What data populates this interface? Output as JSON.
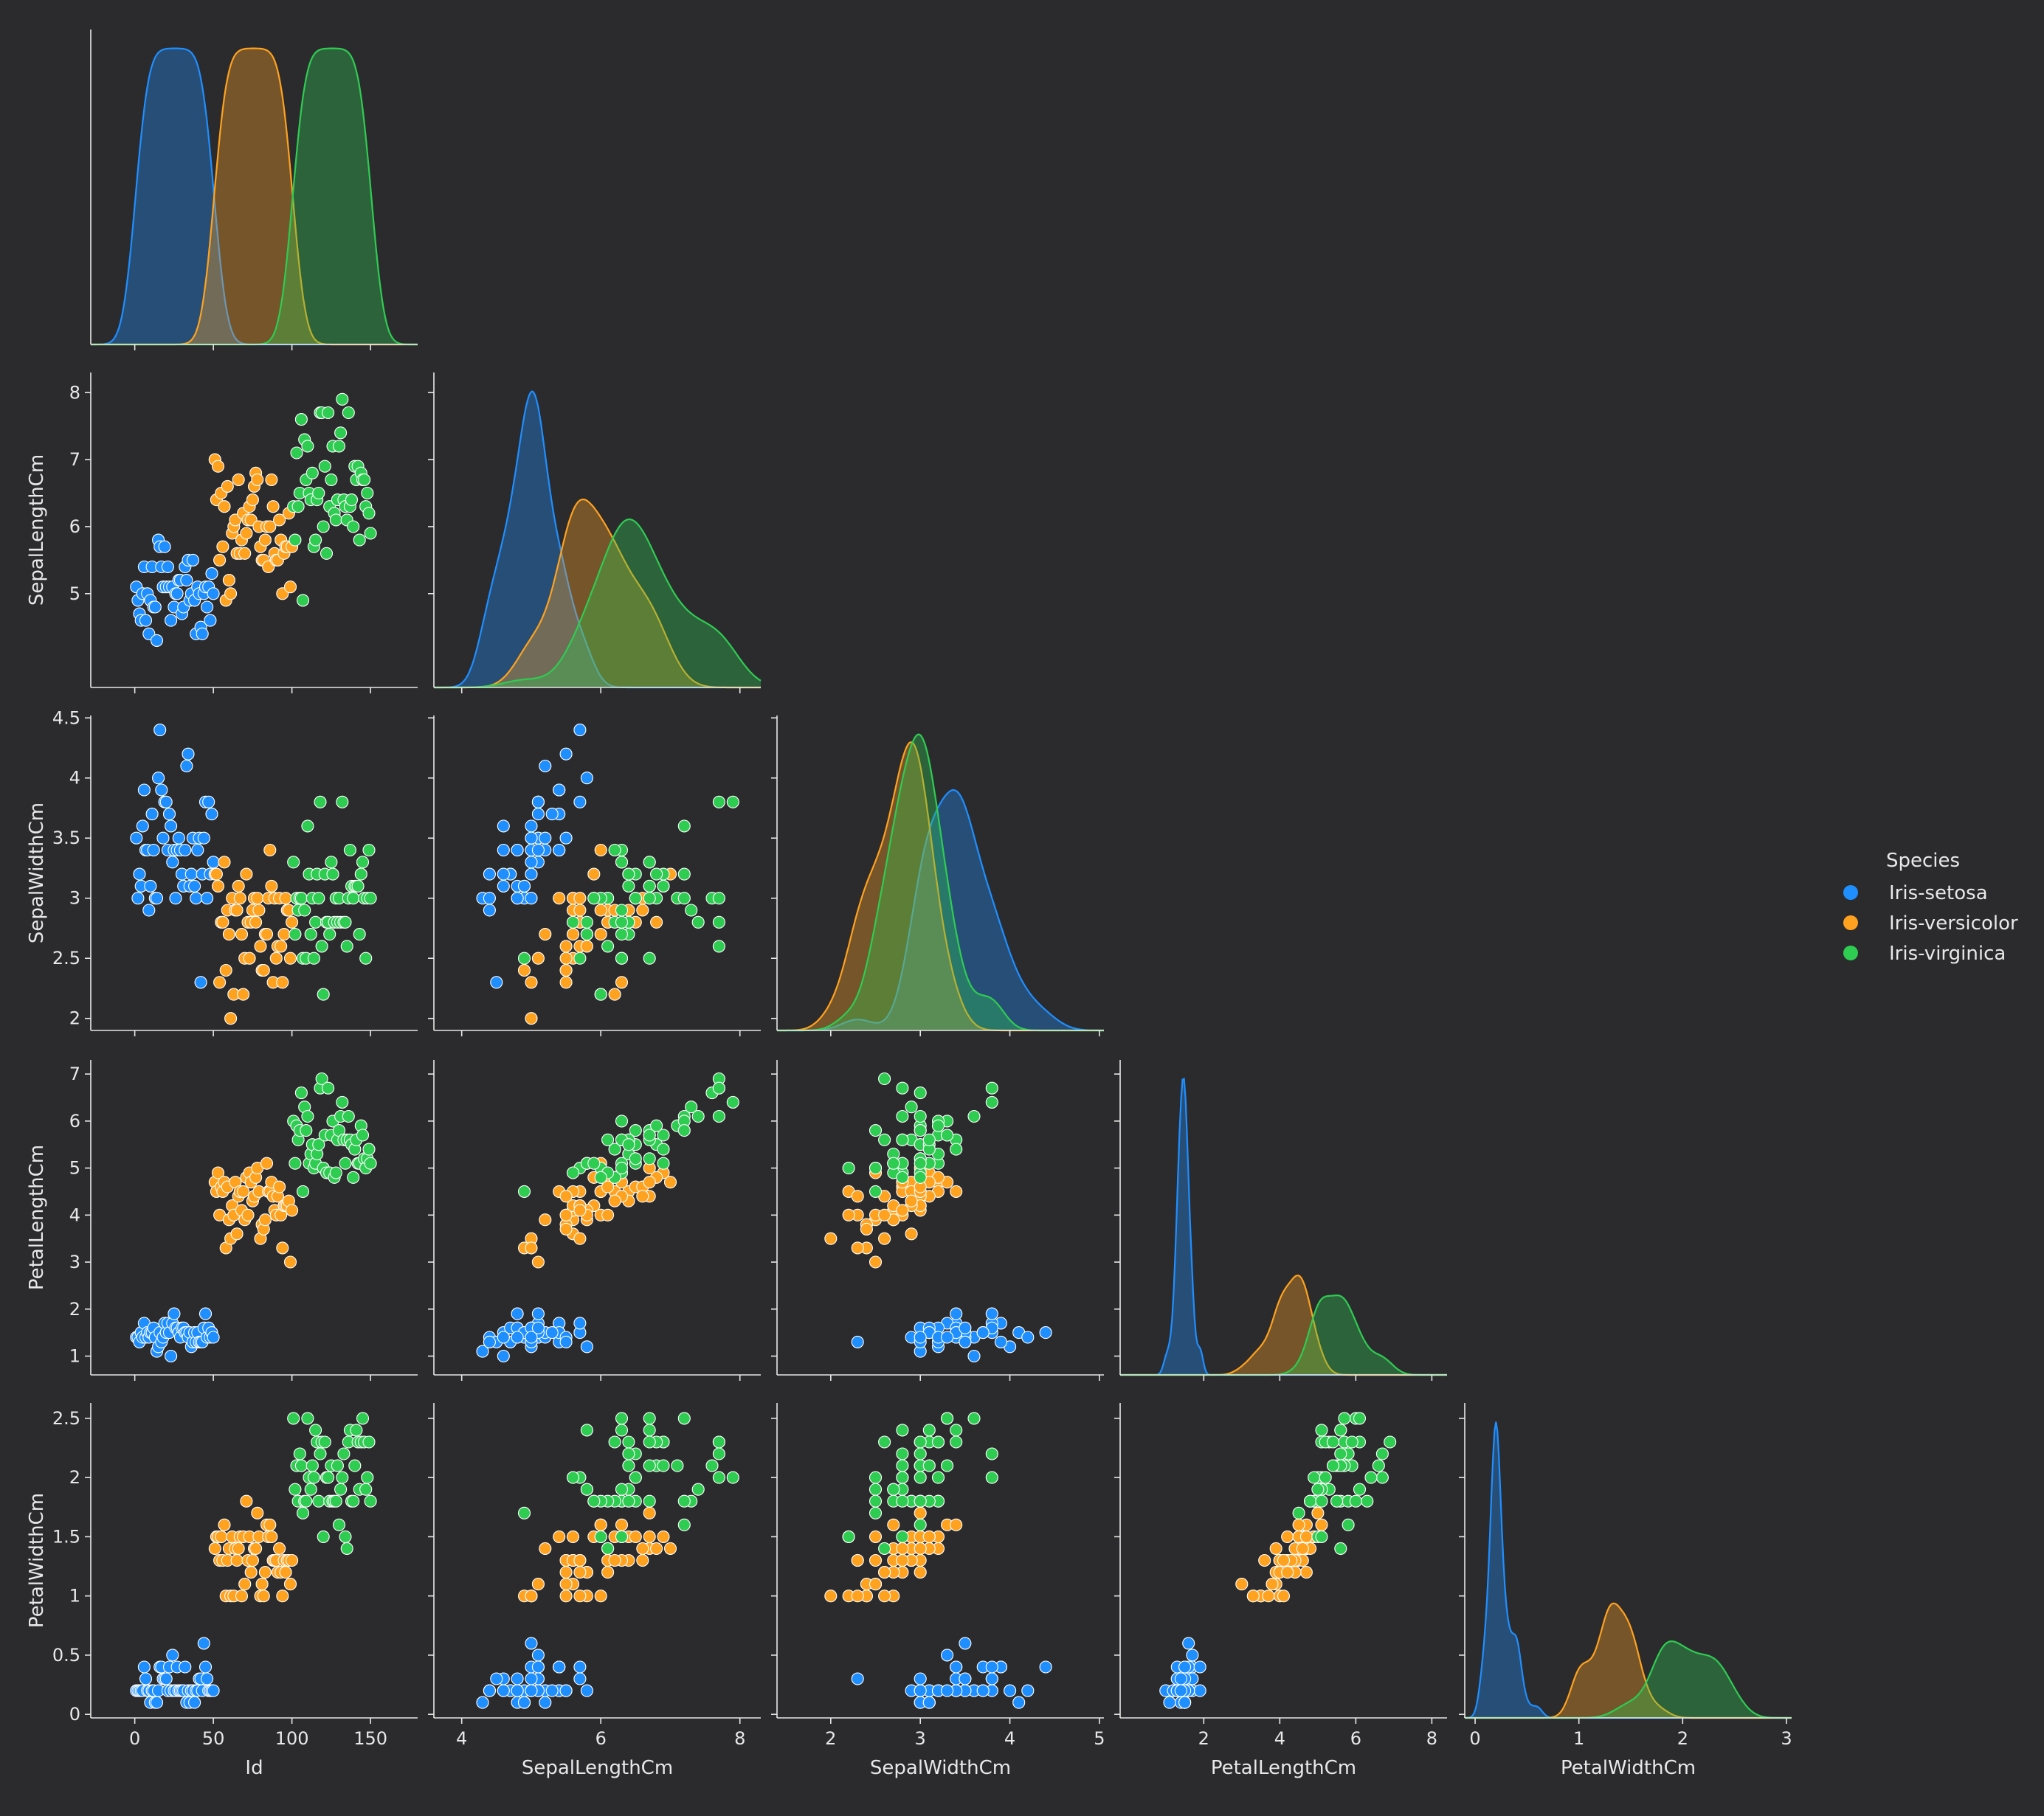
{
  "colors": {
    "background": "#2b2b2e",
    "axis": "#e8e8e8",
    "text": "#e8e8e8",
    "setosa": "#1f8fff",
    "versicolor": "#ffa21f",
    "virginica": "#2fcc52"
  },
  "chart_data": {
    "type": "pairplot",
    "variables": [
      "Id",
      "SepalLengthCm",
      "SepalWidthCm",
      "PetalLengthCm",
      "PetalWidthCm"
    ],
    "corner": true,
    "diag_kind": "kde",
    "offdiag_kind": "scatter",
    "axes": {
      "Id": {
        "range": [
          -28,
          180
        ],
        "ticks": [
          0,
          50,
          100,
          150
        ]
      },
      "SepalLengthCm": {
        "range": [
          3.6,
          8.3
        ],
        "ticks": [
          4,
          6,
          8
        ],
        "yticks": [
          5,
          6,
          7,
          8
        ]
      },
      "SepalWidthCm": {
        "range": [
          1.9,
          4.52
        ],
        "ticks": [
          2,
          3,
          4,
          5
        ],
        "xrange": [
          1.4,
          5.05
        ],
        "yticks": [
          2.0,
          2.5,
          3.0,
          3.5,
          4.0,
          4.5
        ]
      },
      "PetalLengthCm": {
        "range": [
          0.6,
          7.3
        ],
        "ticks": [
          2,
          4,
          6,
          8
        ],
        "xrange": [
          -0.2,
          8.4
        ],
        "yticks": [
          1,
          2,
          3,
          4,
          5,
          6,
          7
        ]
      },
      "PetalWidthCm": {
        "range": [
          -0.03,
          2.63
        ],
        "ticks": [
          0,
          1,
          2,
          3
        ],
        "xrange": [
          -0.1,
          3.05
        ],
        "yticks": [
          0.0,
          0.5,
          1.0,
          1.5,
          2.0,
          2.5
        ]
      }
    },
    "legend": {
      "title": "Species",
      "position": "right",
      "entries": [
        "Iris-setosa",
        "Iris-versicolor",
        "Iris-virginica"
      ]
    },
    "species": [
      "Iris-setosa",
      "Iris-versicolor",
      "Iris-virginica"
    ],
    "data": {
      "Id": [
        1,
        2,
        3,
        4,
        5,
        6,
        7,
        8,
        9,
        10,
        11,
        12,
        13,
        14,
        15,
        16,
        17,
        18,
        19,
        20,
        21,
        22,
        23,
        24,
        25,
        26,
        27,
        28,
        29,
        30,
        31,
        32,
        33,
        34,
        35,
        36,
        37,
        38,
        39,
        40,
        41,
        42,
        43,
        44,
        45,
        46,
        47,
        48,
        49,
        50,
        51,
        52,
        53,
        54,
        55,
        56,
        57,
        58,
        59,
        60,
        61,
        62,
        63,
        64,
        65,
        66,
        67,
        68,
        69,
        70,
        71,
        72,
        73,
        74,
        75,
        76,
        77,
        78,
        79,
        80,
        81,
        82,
        83,
        84,
        85,
        86,
        87,
        88,
        89,
        90,
        91,
        92,
        93,
        94,
        95,
        96,
        97,
        98,
        99,
        100,
        101,
        102,
        103,
        104,
        105,
        106,
        107,
        108,
        109,
        110,
        111,
        112,
        113,
        114,
        115,
        116,
        117,
        118,
        119,
        120,
        121,
        122,
        123,
        124,
        125,
        126,
        127,
        128,
        129,
        130,
        131,
        132,
        133,
        134,
        135,
        136,
        137,
        138,
        139,
        140,
        141,
        142,
        143,
        144,
        145,
        146,
        147,
        148,
        149,
        150
      ],
      "SepalLengthCm": [
        5.1,
        4.9,
        4.7,
        4.6,
        5.0,
        5.4,
        4.6,
        5.0,
        4.4,
        4.9,
        5.4,
        4.8,
        4.8,
        4.3,
        5.8,
        5.7,
        5.4,
        5.1,
        5.7,
        5.1,
        5.4,
        5.1,
        4.6,
        5.1,
        4.8,
        5.0,
        5.0,
        5.2,
        5.2,
        4.7,
        4.8,
        5.4,
        5.2,
        5.5,
        4.9,
        5.0,
        5.5,
        4.9,
        4.4,
        5.1,
        5.0,
        4.5,
        4.4,
        5.0,
        5.1,
        4.8,
        5.1,
        4.6,
        5.3,
        5.0,
        7.0,
        6.4,
        6.9,
        5.5,
        6.5,
        5.7,
        6.3,
        4.9,
        6.6,
        5.2,
        5.0,
        5.9,
        6.0,
        6.1,
        5.6,
        6.7,
        5.6,
        5.8,
        6.2,
        5.6,
        5.9,
        6.1,
        6.3,
        6.1,
        6.4,
        6.6,
        6.8,
        6.7,
        6.0,
        5.7,
        5.5,
        5.5,
        5.8,
        6.0,
        5.4,
        6.0,
        6.7,
        6.3,
        5.6,
        5.5,
        5.5,
        6.1,
        5.8,
        5.0,
        5.6,
        5.7,
        5.7,
        6.2,
        5.1,
        5.7,
        6.3,
        5.8,
        7.1,
        6.3,
        6.5,
        7.6,
        4.9,
        7.3,
        6.7,
        7.2,
        6.5,
        6.4,
        6.8,
        5.7,
        5.8,
        6.4,
        6.5,
        7.7,
        7.7,
        6.0,
        6.9,
        5.6,
        7.7,
        6.3,
        6.7,
        7.2,
        6.2,
        6.1,
        6.4,
        7.2,
        7.4,
        7.9,
        6.4,
        6.3,
        6.1,
        7.7,
        6.3,
        6.4,
        6.0,
        6.9,
        6.7,
        6.9,
        5.8,
        6.8,
        6.7,
        6.7,
        6.3,
        6.5,
        6.2,
        5.9
      ],
      "SepalWidthCm": [
        3.5,
        3.0,
        3.2,
        3.1,
        3.6,
        3.9,
        3.4,
        3.4,
        2.9,
        3.1,
        3.7,
        3.4,
        3.0,
        3.0,
        4.0,
        4.4,
        3.9,
        3.5,
        3.8,
        3.8,
        3.4,
        3.7,
        3.6,
        3.3,
        3.4,
        3.0,
        3.4,
        3.5,
        3.4,
        3.2,
        3.1,
        3.4,
        4.1,
        4.2,
        3.1,
        3.2,
        3.5,
        3.1,
        3.0,
        3.4,
        3.5,
        2.3,
        3.2,
        3.5,
        3.8,
        3.0,
        3.8,
        3.2,
        3.7,
        3.3,
        3.2,
        3.2,
        3.1,
        2.3,
        2.8,
        2.8,
        3.3,
        2.4,
        2.9,
        2.7,
        2.0,
        3.0,
        2.2,
        2.9,
        2.9,
        3.1,
        3.0,
        2.7,
        2.2,
        2.5,
        3.2,
        2.8,
        2.5,
        2.8,
        2.9,
        3.0,
        2.8,
        3.0,
        2.9,
        2.6,
        2.4,
        2.4,
        2.7,
        2.7,
        3.0,
        3.4,
        3.1,
        2.3,
        3.0,
        2.5,
        2.6,
        3.0,
        2.6,
        2.3,
        2.7,
        3.0,
        2.9,
        2.9,
        2.5,
        2.8,
        3.3,
        2.7,
        3.0,
        2.9,
        3.0,
        3.0,
        2.5,
        2.9,
        2.5,
        3.6,
        3.2,
        2.7,
        3.0,
        2.5,
        2.8,
        3.2,
        3.0,
        3.8,
        2.6,
        2.2,
        3.2,
        2.8,
        2.8,
        2.7,
        3.3,
        3.2,
        2.8,
        3.0,
        2.8,
        3.0,
        2.8,
        3.8,
        2.8,
        2.8,
        2.6,
        3.0,
        3.4,
        3.1,
        3.0,
        3.1,
        3.1,
        3.1,
        2.7,
        3.2,
        3.3,
        3.0,
        2.5,
        3.0,
        3.4,
        3.0
      ],
      "PetalLengthCm": [
        1.4,
        1.4,
        1.3,
        1.5,
        1.4,
        1.7,
        1.4,
        1.5,
        1.4,
        1.5,
        1.5,
        1.6,
        1.4,
        1.1,
        1.2,
        1.5,
        1.3,
        1.4,
        1.7,
        1.5,
        1.7,
        1.5,
        1.0,
        1.7,
        1.9,
        1.6,
        1.6,
        1.5,
        1.4,
        1.6,
        1.6,
        1.5,
        1.5,
        1.4,
        1.5,
        1.2,
        1.3,
        1.5,
        1.3,
        1.5,
        1.3,
        1.3,
        1.3,
        1.6,
        1.9,
        1.4,
        1.6,
        1.4,
        1.5,
        1.4,
        4.7,
        4.5,
        4.9,
        4.0,
        4.6,
        4.5,
        4.7,
        3.3,
        4.6,
        3.9,
        3.5,
        4.2,
        4.0,
        4.7,
        3.6,
        4.4,
        4.5,
        4.1,
        4.5,
        3.9,
        4.8,
        4.0,
        4.9,
        4.7,
        4.3,
        4.4,
        4.8,
        5.0,
        4.5,
        3.5,
        3.8,
        3.7,
        3.9,
        5.1,
        4.5,
        4.5,
        4.7,
        4.4,
        4.1,
        4.0,
        4.4,
        4.6,
        4.0,
        3.3,
        4.2,
        4.2,
        4.2,
        4.3,
        3.0,
        4.1,
        6.0,
        5.1,
        5.9,
        5.6,
        5.8,
        6.6,
        4.5,
        6.3,
        5.8,
        6.1,
        5.1,
        5.3,
        5.5,
        5.0,
        5.1,
        5.3,
        5.5,
        6.7,
        6.9,
        5.0,
        5.7,
        4.9,
        6.7,
        4.9,
        5.7,
        6.0,
        4.8,
        4.9,
        5.6,
        5.8,
        6.1,
        6.4,
        5.6,
        5.1,
        5.6,
        6.1,
        5.6,
        5.5,
        4.8,
        5.4,
        5.6,
        5.1,
        5.1,
        5.9,
        5.7,
        5.2,
        5.0,
        5.2,
        5.4,
        5.1
      ],
      "PetalWidthCm": [
        0.2,
        0.2,
        0.2,
        0.2,
        0.2,
        0.4,
        0.3,
        0.2,
        0.2,
        0.1,
        0.2,
        0.2,
        0.1,
        0.1,
        0.2,
        0.4,
        0.4,
        0.3,
        0.3,
        0.3,
        0.2,
        0.4,
        0.2,
        0.5,
        0.2,
        0.2,
        0.4,
        0.2,
        0.2,
        0.2,
        0.2,
        0.4,
        0.1,
        0.2,
        0.1,
        0.2,
        0.2,
        0.1,
        0.2,
        0.2,
        0.3,
        0.3,
        0.2,
        0.6,
        0.4,
        0.3,
        0.2,
        0.2,
        0.2,
        0.2,
        1.4,
        1.5,
        1.5,
        1.3,
        1.5,
        1.3,
        1.6,
        1.0,
        1.3,
        1.4,
        1.0,
        1.5,
        1.0,
        1.4,
        1.3,
        1.4,
        1.5,
        1.0,
        1.5,
        1.1,
        1.8,
        1.3,
        1.5,
        1.2,
        1.3,
        1.4,
        1.4,
        1.7,
        1.5,
        1.0,
        1.1,
        1.0,
        1.2,
        1.6,
        1.5,
        1.6,
        1.5,
        1.3,
        1.3,
        1.3,
        1.2,
        1.4,
        1.2,
        1.0,
        1.3,
        1.2,
        1.3,
        1.3,
        1.1,
        1.3,
        2.5,
        1.9,
        2.1,
        1.8,
        2.2,
        2.1,
        1.7,
        1.8,
        1.8,
        2.5,
        2.0,
        1.9,
        2.1,
        2.0,
        2.4,
        2.3,
        1.8,
        2.2,
        2.3,
        1.5,
        2.3,
        2.0,
        2.0,
        1.8,
        2.1,
        1.8,
        1.8,
        1.8,
        2.1,
        1.6,
        1.9,
        2.0,
        2.2,
        1.5,
        1.4,
        2.3,
        2.4,
        1.8,
        1.8,
        2.1,
        2.4,
        2.3,
        1.9,
        2.3,
        2.5,
        2.3,
        1.9,
        2.0,
        2.3,
        1.8
      ]
    }
  }
}
